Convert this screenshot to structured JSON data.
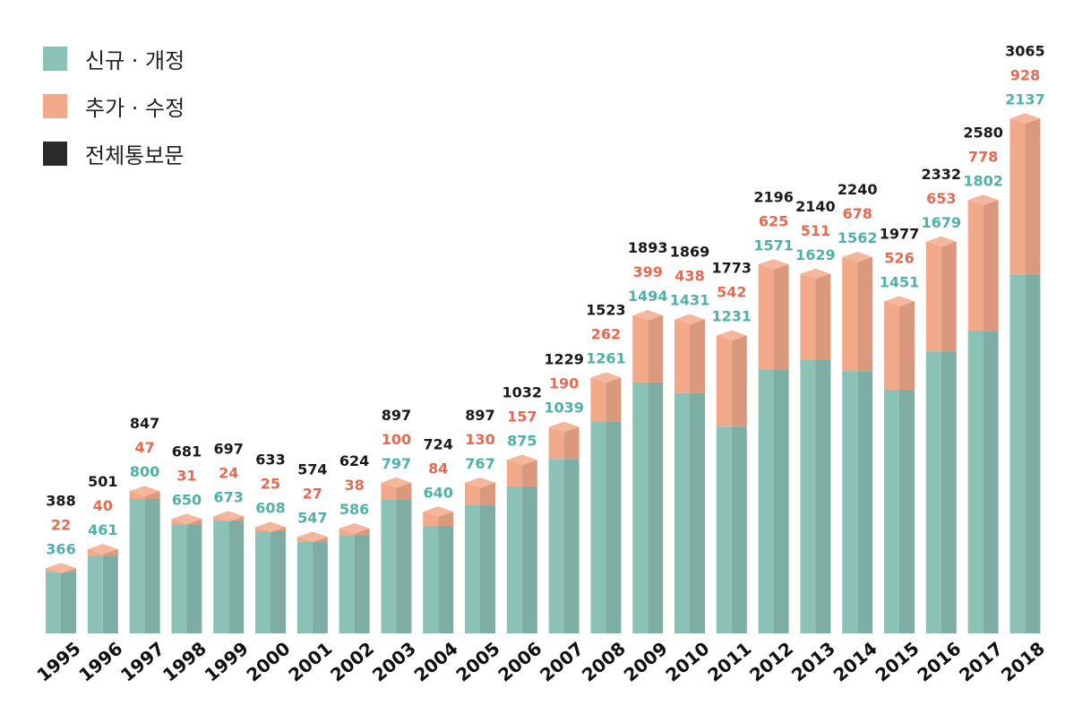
{
  "chart_data": {
    "type": "bar",
    "stacked": true,
    "title": "",
    "xlabel": "",
    "ylabel": "",
    "ylim": [
      0,
      3200
    ],
    "grid": false,
    "legend_position": "top-left",
    "categories": [
      "1995",
      "1996",
      "1997",
      "1998",
      "1999",
      "2000",
      "2001",
      "2002",
      "2003",
      "2004",
      "2005",
      "2006",
      "2007",
      "2008",
      "2009",
      "2010",
      "2011",
      "2012",
      "2013",
      "2014",
      "2015",
      "2016",
      "2017",
      "2018"
    ],
    "series": [
      {
        "name": "신규 · 개정",
        "color": "#8cc1b5",
        "values": [
          366,
          461,
          800,
          650,
          673,
          608,
          547,
          586,
          797,
          640,
          767,
          875,
          1039,
          1261,
          1494,
          1431,
          1231,
          1571,
          1629,
          1562,
          1451,
          1679,
          1802,
          2137
        ]
      },
      {
        "name": "추가 · 수정",
        "color": "#f2a98a",
        "values": [
          22,
          40,
          47,
          31,
          24,
          25,
          27,
          38,
          100,
          84,
          130,
          157,
          190,
          262,
          399,
          438,
          542,
          625,
          511,
          678,
          526,
          653,
          778,
          928
        ]
      }
    ],
    "totals": {
      "name": "전체통보문",
      "color": "#2a2a2a",
      "values": [
        388,
        501,
        847,
        681,
        697,
        633,
        574,
        624,
        897,
        724,
        897,
        1032,
        1229,
        1523,
        1893,
        1869,
        1773,
        2196,
        2140,
        2240,
        1977,
        2332,
        2580,
        3065
      ]
    },
    "label_colors": {
      "new": "#4fb1a8",
      "added": "#e8694f",
      "total": "#1a1a1a"
    }
  }
}
